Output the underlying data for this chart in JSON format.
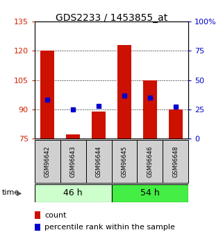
{
  "title": "GDS2233 / 1453855_at",
  "samples": [
    "GSM96642",
    "GSM96643",
    "GSM96644",
    "GSM96645",
    "GSM96646",
    "GSM96648"
  ],
  "count_values": [
    120,
    77,
    89,
    123,
    105,
    90
  ],
  "percentile_values": [
    33,
    25,
    28,
    37,
    35,
    27
  ],
  "ylim_left": [
    75,
    135
  ],
  "ylim_right": [
    0,
    100
  ],
  "yticks_left": [
    75,
    90,
    105,
    120,
    135
  ],
  "yticks_right": [
    0,
    25,
    50,
    75,
    100
  ],
  "bar_color": "#cc1100",
  "dot_color": "#0000cc",
  "group1_label": "46 h",
  "group2_label": "54 h",
  "group1_color": "#ccffcc",
  "group2_color": "#44ee44",
  "time_label": "time",
  "legend1": "count",
  "legend2": "percentile rank within the sample",
  "bar_width": 0.55,
  "tick_color_left": "#cc2200",
  "tick_color_right": "#0000cc",
  "title_fontsize": 10,
  "tick_fontsize": 8,
  "sample_fontsize": 6,
  "group_fontsize": 9,
  "legend_fontsize": 8
}
